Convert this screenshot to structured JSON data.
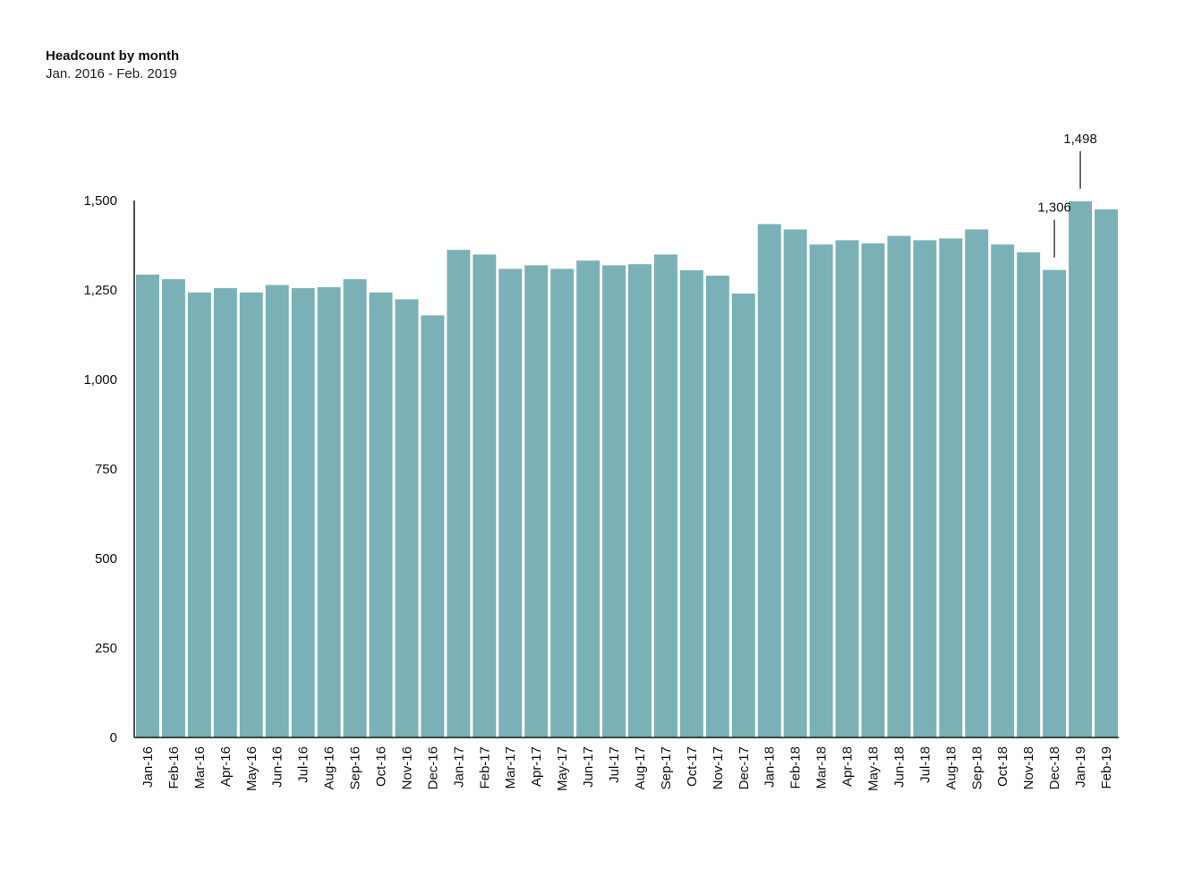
{
  "title": "Headcount by month",
  "subtitle": "Jan. 2016 - Feb. 2019",
  "colors": {
    "bar": "#7ab1b6",
    "axis": "#111111",
    "text": "#111111"
  },
  "chart_data": {
    "type": "bar",
    "title": "Headcount by month",
    "subtitle": "Jan. 2016 - Feb. 2019",
    "xlabel": "",
    "ylabel": "",
    "ylim": [
      0,
      1500
    ],
    "yticks": [
      0,
      250,
      500,
      750,
      1000,
      1250,
      1500
    ],
    "ytick_labels": [
      "0",
      "250",
      "500",
      "750",
      "1,000",
      "1,250",
      "1,500"
    ],
    "grid": false,
    "legend": "none",
    "categories": [
      "Jan-16",
      "Feb-16",
      "Mar-16",
      "Apr-16",
      "May-16",
      "Jun-16",
      "Jul-16",
      "Aug-16",
      "Sep-16",
      "Oct-16",
      "Nov-16",
      "Dec-16",
      "Jan-17",
      "Feb-17",
      "Mar-17",
      "Apr-17",
      "May-17",
      "Jun-17",
      "Jul-17",
      "Aug-17",
      "Sep-17",
      "Oct-17",
      "Nov-17",
      "Dec-17",
      "Jan-18",
      "Feb-18",
      "Mar-18",
      "Apr-18",
      "May-18",
      "Jun-18",
      "Jul-18",
      "Aug-18",
      "Sep-18",
      "Oct-18",
      "Nov-18",
      "Dec-18",
      "Jan-19",
      "Feb-19"
    ],
    "values": [
      1293,
      1280,
      1243,
      1255,
      1243,
      1264,
      1255,
      1258,
      1280,
      1243,
      1224,
      1179,
      1362,
      1349,
      1309,
      1319,
      1309,
      1332,
      1319,
      1322,
      1349,
      1305,
      1290,
      1240,
      1434,
      1419,
      1377,
      1389,
      1380,
      1401,
      1389,
      1394,
      1419,
      1377,
      1355,
      1306,
      1498,
      1475
    ],
    "annotations": [
      {
        "category": "Dec-18",
        "label": "1,306"
      },
      {
        "category": "Jan-19",
        "label": "1,498"
      }
    ]
  }
}
